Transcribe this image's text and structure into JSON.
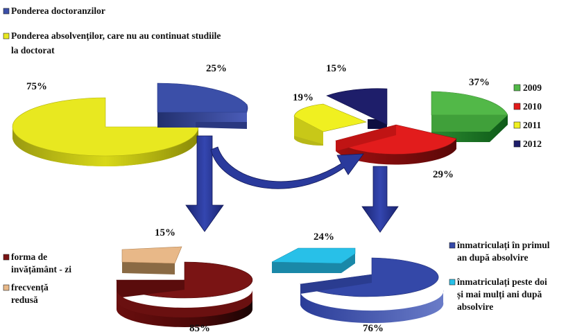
{
  "chart_data": [
    {
      "type": "pie",
      "legend": [
        {
          "label": "Ponderea doctoranzilor",
          "color": "#3b4fa8"
        },
        {
          "label": "Ponderea absolvenților, care nu au continuat studiile",
          "label_line2": "la doctorat",
          "color": "#e8e820"
        }
      ],
      "slices": [
        {
          "value": 25,
          "label": "25%",
          "color": "#3b4fa8"
        },
        {
          "value": 75,
          "label": "75%",
          "color": "#e8e820"
        }
      ]
    },
    {
      "type": "pie",
      "legend": [
        {
          "label": "2009",
          "color": "#52b848"
        },
        {
          "label": "2010",
          "color": "#e21c1c"
        },
        {
          "label": "2011",
          "color": "#f0f020"
        },
        {
          "label": "2012",
          "color": "#1e1e6a"
        }
      ],
      "slices": [
        {
          "value": 37,
          "label": "37%",
          "color": "#52b848"
        },
        {
          "value": 29,
          "label": "29%",
          "color": "#e21c1c"
        },
        {
          "value": 19,
          "label": "19%",
          "color": "#f0f020"
        },
        {
          "value": 15,
          "label": "15%",
          "color": "#1e1e6a"
        }
      ]
    },
    {
      "type": "pie",
      "legend": [
        {
          "label": "forma de",
          "label_line2": "invățământ - zi",
          "color": "#7a1414"
        },
        {
          "label": "frecvență",
          "label_line2": "redusă",
          "color": "#e8b888"
        }
      ],
      "slices": [
        {
          "value": 85,
          "label": "85%",
          "color": "#7a1414"
        },
        {
          "value": 15,
          "label": "15%",
          "color": "#e8b888"
        }
      ]
    },
    {
      "type": "pie",
      "legend": [
        {
          "label": "înmatriculați în primul",
          "label_line2": "an după absolvire",
          "color": "#3448a8"
        },
        {
          "label": "înmatriculați peste doi",
          "label_line2": "și mai mulți ani după",
          "label_line3": "absolvire",
          "color": "#28c0e8"
        }
      ],
      "slices": [
        {
          "value": 76,
          "label": "76%",
          "color": "#3448a8"
        },
        {
          "value": 24,
          "label": "24%",
          "color": "#28c0e8"
        }
      ]
    }
  ],
  "colors": {
    "arrow": "#2a3a9c",
    "arrow_dark": "#1a2470"
  }
}
